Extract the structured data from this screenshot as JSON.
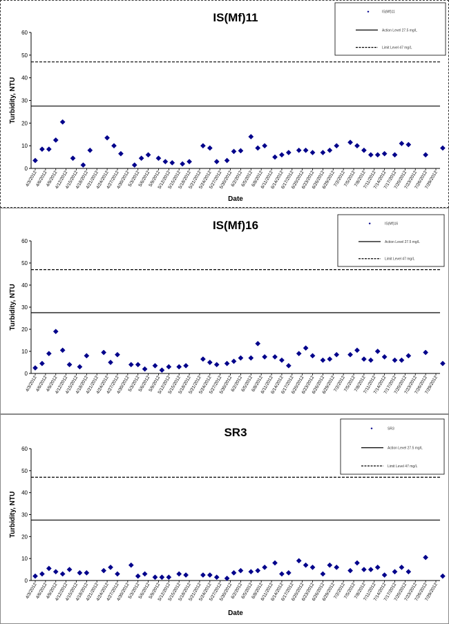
{
  "page_bg": "#ffffff",
  "marker_color": "#00008b",
  "chart_data": [
    {
      "type": "scatter",
      "title": "IS(Mf)11",
      "xlabel": "Date",
      "ylabel": "Turbidity, NTU",
      "ylim": [
        0,
        60
      ],
      "yticks": [
        0,
        10,
        20,
        30,
        40,
        50,
        60
      ],
      "xtick_labels": [
        "4/3/2012",
        "4/6/2012",
        "4/9/2012",
        "4/12/2012",
        "4/15/2012",
        "4/18/2012",
        "4/21/2012",
        "4/24/2012",
        "4/27/2012",
        "4/30/2012",
        "5/3/2012",
        "5/6/2012",
        "5/9/2012",
        "5/12/2012",
        "5/15/2012",
        "5/18/2012",
        "5/21/2012",
        "5/24/2012",
        "5/27/2012",
        "5/30/2012",
        "6/2/2012",
        "6/5/2012",
        "6/8/2012",
        "6/11/2012",
        "6/14/2012",
        "6/17/2012",
        "6/20/2012",
        "6/23/2012",
        "6/26/2012",
        "6/29/2012",
        "7/2/2012",
        "7/5/2012",
        "7/8/2012",
        "7/11/2012",
        "7/14/2012",
        "7/17/2012",
        "7/20/2012",
        "7/23/2012",
        "7/26/2012",
        "7/29/2012"
      ],
      "grid": false,
      "legend_position": "top-right",
      "legend": [
        "IS(Mf)11",
        "Action Level 27.5 mg/L",
        "Limit Level 47 mg/L"
      ],
      "reference_lines": [
        {
          "value": 27.5,
          "style": "solid"
        },
        {
          "value": 47,
          "style": "dashed"
        }
      ],
      "series": [
        {
          "name": "IS(Mf)11",
          "points": [
            [
              "4/3/2012",
              3.5
            ],
            [
              "4/5/2012",
              8.5
            ],
            [
              "4/7/2012",
              8.5
            ],
            [
              "4/9/2012",
              12.5
            ],
            [
              "4/11/2012",
              20.5
            ],
            [
              "4/14/2012",
              4.5
            ],
            [
              "4/17/2012",
              1.5
            ],
            [
              "4/19/2012",
              8
            ],
            [
              "4/24/2012",
              13.5
            ],
            [
              "4/26/2012",
              10
            ],
            [
              "4/28/2012",
              6.5
            ],
            [
              "5/2/2012",
              1.5
            ],
            [
              "5/4/2012",
              4.5
            ],
            [
              "5/6/2012",
              6
            ],
            [
              "5/9/2012",
              4.5
            ],
            [
              "5/11/2012",
              3
            ],
            [
              "5/13/2012",
              2.5
            ],
            [
              "5/16/2012",
              2
            ],
            [
              "5/18/2012",
              3
            ],
            [
              "5/22/2012",
              10
            ],
            [
              "5/24/2012",
              9
            ],
            [
              "5/26/2012",
              3
            ],
            [
              "5/29/2012",
              3.5
            ],
            [
              "5/31/2012",
              7.5
            ],
            [
              "6/2/2012",
              7.8
            ],
            [
              "6/5/2012",
              14
            ],
            [
              "6/7/2012",
              9
            ],
            [
              "6/9/2012",
              10
            ],
            [
              "6/12/2012",
              5
            ],
            [
              "6/14/2012",
              6
            ],
            [
              "6/16/2012",
              7
            ],
            [
              "6/19/2012",
              8
            ],
            [
              "6/21/2012",
              8
            ],
            [
              "6/23/2012",
              7
            ],
            [
              "6/26/2012",
              7
            ],
            [
              "6/28/2012",
              8
            ],
            [
              "6/30/2012",
              10
            ],
            [
              "7/4/2012",
              11.5
            ],
            [
              "7/6/2012",
              10
            ],
            [
              "7/8/2012",
              8
            ],
            [
              "7/10/2012",
              6
            ],
            [
              "7/12/2012",
              6
            ],
            [
              "7/14/2012",
              6.5
            ],
            [
              "7/17/2012",
              6
            ],
            [
              "7/19/2012",
              11
            ],
            [
              "7/21/2012",
              10.5
            ],
            [
              "7/26/2012",
              6
            ],
            [
              "7/31/2012",
              9
            ]
          ]
        }
      ]
    },
    {
      "type": "scatter",
      "title": "IS(Mf)16",
      "xlabel": "",
      "ylabel": "Turbidity, NTU",
      "ylim": [
        0,
        60
      ],
      "yticks": [
        0,
        10,
        20,
        30,
        40,
        50,
        60
      ],
      "xtick_labels": [
        "4/3/2012",
        "4/6/2012",
        "4/9/2012",
        "4/12/2012",
        "4/15/2012",
        "4/18/2012",
        "4/21/2012",
        "4/24/2012",
        "4/27/2012",
        "4/30/2012",
        "5/3/2012",
        "5/6/2012",
        "5/9/2012",
        "5/12/2012",
        "5/15/2012",
        "5/18/2012",
        "5/21/2012",
        "5/24/2012",
        "5/27/2012",
        "5/30/2012",
        "6/2/2012",
        "6/5/2012",
        "6/8/2012",
        "6/11/2012",
        "6/14/2012",
        "6/17/2012",
        "6/20/2012",
        "6/23/2012",
        "6/26/2012",
        "6/29/2012",
        "7/2/2012",
        "7/5/2012",
        "7/8/2012",
        "7/11/2012",
        "7/14/2012",
        "7/17/2012",
        "7/20/2012",
        "7/23/2012",
        "7/26/2012",
        "7/29/2012"
      ],
      "grid": false,
      "legend_position": "top-right",
      "legend": [
        "IS(Mf)16",
        "Action Level 27.5 mg/L",
        "Limit Level 47 mg/L"
      ],
      "reference_lines": [
        {
          "value": 27.5,
          "style": "solid"
        },
        {
          "value": 47,
          "style": "dashed"
        }
      ],
      "series": [
        {
          "name": "IS(Mf)16",
          "points": [
            [
              "4/3/2012",
              2.5
            ],
            [
              "4/5/2012",
              4.5
            ],
            [
              "4/7/2012",
              9
            ],
            [
              "4/9/2012",
              19
            ],
            [
              "4/11/2012",
              10.5
            ],
            [
              "4/13/2012",
              4
            ],
            [
              "4/16/2012",
              3
            ],
            [
              "4/18/2012",
              8
            ],
            [
              "4/23/2012",
              9.5
            ],
            [
              "4/25/2012",
              5
            ],
            [
              "4/27/2012",
              8.5
            ],
            [
              "5/1/2012",
              4
            ],
            [
              "5/3/2012",
              4
            ],
            [
              "5/5/2012",
              2
            ],
            [
              "5/8/2012",
              3.5
            ],
            [
              "5/10/2012",
              1.5
            ],
            [
              "5/12/2012",
              3
            ],
            [
              "5/15/2012",
              3
            ],
            [
              "5/17/2012",
              3.5
            ],
            [
              "5/22/2012",
              6.5
            ],
            [
              "5/24/2012",
              5
            ],
            [
              "5/26/2012",
              4
            ],
            [
              "5/29/2012",
              4.5
            ],
            [
              "5/31/2012",
              5.5
            ],
            [
              "6/2/2012",
              7
            ],
            [
              "6/5/2012",
              7
            ],
            [
              "6/7/2012",
              13.5
            ],
            [
              "6/9/2012",
              7.5
            ],
            [
              "6/12/2012",
              7.5
            ],
            [
              "6/14/2012",
              6
            ],
            [
              "6/16/2012",
              3.5
            ],
            [
              "6/19/2012",
              9
            ],
            [
              "6/21/2012",
              11.5
            ],
            [
              "6/23/2012",
              8
            ],
            [
              "6/26/2012",
              6
            ],
            [
              "6/28/2012",
              6.5
            ],
            [
              "6/30/2012",
              8.5
            ],
            [
              "7/4/2012",
              8.5
            ],
            [
              "7/6/2012",
              10.5
            ],
            [
              "7/8/2012",
              6.5
            ],
            [
              "7/10/2012",
              6
            ],
            [
              "7/12/2012",
              10
            ],
            [
              "7/14/2012",
              7.5
            ],
            [
              "7/17/2012",
              6
            ],
            [
              "7/19/2012",
              6
            ],
            [
              "7/21/2012",
              8
            ],
            [
              "7/26/2012",
              9.5
            ],
            [
              "7/31/2012",
              4.5
            ]
          ]
        }
      ]
    },
    {
      "type": "scatter",
      "title": "SR3",
      "xlabel": "Date",
      "ylabel": "Turbidity, NTU",
      "ylim": [
        0,
        60
      ],
      "yticks": [
        0,
        10,
        20,
        30,
        40,
        50,
        60
      ],
      "xtick_labels": [
        "4/3/2012",
        "4/6/2012",
        "4/9/2012",
        "4/12/2012",
        "4/15/2012",
        "4/18/2012",
        "4/21/2012",
        "4/24/2012",
        "4/27/2012",
        "4/30/2012",
        "5/3/2012",
        "5/6/2012",
        "5/9/2012",
        "5/12/2012",
        "5/15/2012",
        "5/18/2012",
        "5/21/2012",
        "5/24/2012",
        "5/27/2012",
        "5/30/2012",
        "6/2/2012",
        "6/5/2012",
        "6/8/2012",
        "6/11/2012",
        "6/14/2012",
        "6/17/2012",
        "6/20/2012",
        "6/23/2012",
        "6/26/2012",
        "6/29/2012",
        "7/2/2012",
        "7/5/2012",
        "7/8/2012",
        "7/11/2012",
        "7/14/2012",
        "7/17/2012",
        "7/20/2012",
        "7/23/2012",
        "7/26/2012",
        "7/29/2012"
      ],
      "grid": false,
      "legend_position": "top-right",
      "legend": [
        "SR3",
        "Action Level 27.5 mg/L",
        "Limit Level 47 mg/L"
      ],
      "reference_lines": [
        {
          "value": 27.5,
          "style": "solid"
        },
        {
          "value": 47,
          "style": "dashed"
        }
      ],
      "series": [
        {
          "name": "SR3",
          "points": [
            [
              "4/3/2012",
              2
            ],
            [
              "4/5/2012",
              3
            ],
            [
              "4/7/2012",
              5.5
            ],
            [
              "4/9/2012",
              4
            ],
            [
              "4/11/2012",
              3
            ],
            [
              "4/13/2012",
              5
            ],
            [
              "4/16/2012",
              3.5
            ],
            [
              "4/18/2012",
              3.5
            ],
            [
              "4/23/2012",
              4.5
            ],
            [
              "4/25/2012",
              6
            ],
            [
              "4/27/2012",
              3
            ],
            [
              "5/1/2012",
              7
            ],
            [
              "5/3/2012",
              2
            ],
            [
              "5/5/2012",
              3
            ],
            [
              "5/8/2012",
              1.5
            ],
            [
              "5/10/2012",
              1.5
            ],
            [
              "5/12/2012",
              1.5
            ],
            [
              "5/15/2012",
              3
            ],
            [
              "5/17/2012",
              2.5
            ],
            [
              "5/22/2012",
              2.5
            ],
            [
              "5/24/2012",
              2.5
            ],
            [
              "5/26/2012",
              1.5
            ],
            [
              "5/29/2012",
              1
            ],
            [
              "5/31/2012",
              3.5
            ],
            [
              "6/2/2012",
              4.5
            ],
            [
              "6/5/2012",
              4
            ],
            [
              "6/7/2012",
              4.5
            ],
            [
              "6/9/2012",
              6
            ],
            [
              "6/12/2012",
              8
            ],
            [
              "6/14/2012",
              3
            ],
            [
              "6/16/2012",
              3.5
            ],
            [
              "6/19/2012",
              9
            ],
            [
              "6/21/2012",
              7
            ],
            [
              "6/23/2012",
              6
            ],
            [
              "6/26/2012",
              3
            ],
            [
              "6/28/2012",
              7
            ],
            [
              "6/30/2012",
              6
            ],
            [
              "7/4/2012",
              4.5
            ],
            [
              "7/6/2012",
              8
            ],
            [
              "7/8/2012",
              5
            ],
            [
              "7/10/2012",
              5
            ],
            [
              "7/12/2012",
              6
            ],
            [
              "7/14/2012",
              2.5
            ],
            [
              "7/17/2012",
              4
            ],
            [
              "7/19/2012",
              6
            ],
            [
              "7/21/2012",
              4
            ],
            [
              "7/26/2012",
              10.5
            ],
            [
              "7/31/2012",
              2
            ]
          ]
        }
      ]
    }
  ]
}
